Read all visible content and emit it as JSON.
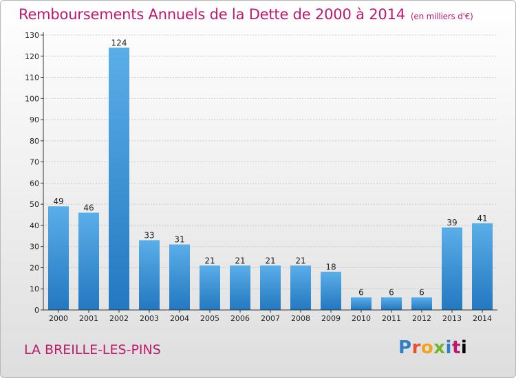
{
  "title": "Remboursements Annuels de la Dette de 2000 à 2014",
  "unit": "(en milliers d'€)",
  "town": "LA BREILLE-LES-PINS",
  "logo": "Proxiti",
  "colors": {
    "title": "#c0186e",
    "bar_top": "#5aaee8",
    "bar_bottom": "#2378c0"
  },
  "chart_data": {
    "type": "bar",
    "title": "Remboursements Annuels de la Dette de 2000 à 2014",
    "xlabel": "",
    "ylabel": "",
    "ylim": [
      0,
      130
    ],
    "yticks": [
      0,
      10,
      20,
      30,
      40,
      50,
      60,
      70,
      80,
      90,
      100,
      110,
      120,
      130
    ],
    "grid": true,
    "categories": [
      "2000",
      "2001",
      "2002",
      "2003",
      "2004",
      "2005",
      "2006",
      "2007",
      "2008",
      "2009",
      "2010",
      "2011",
      "2012",
      "2013",
      "2014"
    ],
    "values": [
      49,
      46,
      124,
      33,
      31,
      21,
      21,
      21,
      21,
      18,
      6,
      6,
      6,
      39,
      41
    ]
  }
}
